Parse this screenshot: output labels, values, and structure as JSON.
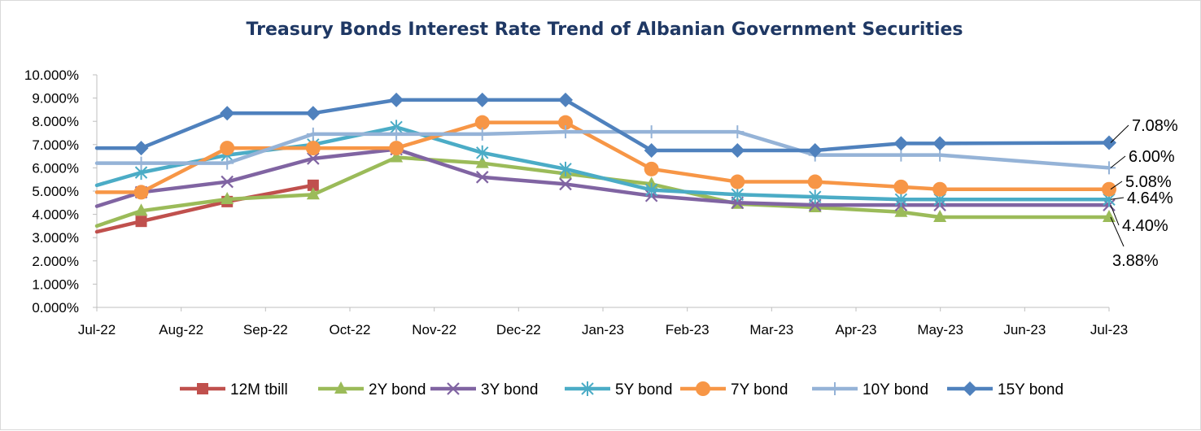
{
  "chart_data": {
    "type": "line",
    "title": "Treasury Bonds Interest Rate Trend of Albanian Government Securities",
    "xlabel": "",
    "ylabel": "",
    "ylim": [
      0,
      10
    ],
    "y_ticks": [
      "0.000%",
      "1.000%",
      "2.000%",
      "3.000%",
      "4.000%",
      "5.000%",
      "6.000%",
      "7.000%",
      "8.000%",
      "9.000%",
      "10.000%"
    ],
    "x_tick_labels": [
      "Jul-22",
      "Aug-22",
      "Sep-22",
      "Oct-22",
      "Nov-22",
      "Dec-22",
      "Jan-23",
      "Feb-23",
      "Mar-23",
      "Apr-23",
      "May-23",
      "Jun-23",
      "Jul-23"
    ],
    "grid": false,
    "legend_position": "bottom",
    "series": [
      {
        "name": "12M tbill",
        "color": "#c0504d",
        "marker": "square",
        "points": [
          [
            "2022-07-01",
            3.25
          ],
          [
            "2022-07-17",
            3.7
          ],
          [
            "2022-08-17",
            4.55
          ],
          [
            "2022-09-17",
            5.25
          ]
        ]
      },
      {
        "name": "2Y bond",
        "color": "#9bbb59",
        "marker": "triangle",
        "points": [
          [
            "2022-07-01",
            3.5
          ],
          [
            "2022-07-17",
            4.15
          ],
          [
            "2022-08-17",
            4.65
          ],
          [
            "2022-09-17",
            4.85
          ],
          [
            "2022-10-17",
            6.45
          ],
          [
            "2022-11-17",
            6.2
          ],
          [
            "2022-12-17",
            5.75
          ],
          [
            "2023-01-17",
            5.3
          ],
          [
            "2023-02-17",
            4.45
          ],
          [
            "2023-03-17",
            4.3
          ],
          [
            "2023-04-17",
            4.1
          ],
          [
            "2023-05-01",
            3.88
          ],
          [
            "2023-07-01",
            3.88
          ]
        ]
      },
      {
        "name": "3Y bond",
        "color": "#8064a2",
        "marker": "x",
        "points": [
          [
            "2022-07-01",
            4.35
          ],
          [
            "2022-07-17",
            4.95
          ],
          [
            "2022-08-17",
            5.4
          ],
          [
            "2022-09-17",
            6.4
          ],
          [
            "2022-10-17",
            6.8
          ],
          [
            "2022-11-17",
            5.6
          ],
          [
            "2022-12-17",
            5.3
          ],
          [
            "2023-01-17",
            4.8
          ],
          [
            "2023-02-17",
            4.5
          ],
          [
            "2023-03-17",
            4.4
          ],
          [
            "2023-04-17",
            4.4
          ],
          [
            "2023-05-01",
            4.4
          ],
          [
            "2023-07-01",
            4.4
          ]
        ]
      },
      {
        "name": "5Y bond",
        "color": "#4bacc6",
        "marker": "asterisk",
        "points": [
          [
            "2022-07-01",
            5.25
          ],
          [
            "2022-07-17",
            5.8
          ],
          [
            "2022-08-17",
            6.55
          ],
          [
            "2022-09-17",
            7.0
          ],
          [
            "2022-10-17",
            7.75
          ],
          [
            "2022-11-17",
            6.65
          ],
          [
            "2022-12-17",
            5.95
          ],
          [
            "2023-01-17",
            5.05
          ],
          [
            "2023-02-17",
            4.85
          ],
          [
            "2023-03-17",
            4.75
          ],
          [
            "2023-04-17",
            4.64
          ],
          [
            "2023-05-01",
            4.64
          ],
          [
            "2023-07-01",
            4.64
          ]
        ]
      },
      {
        "name": "7Y bond",
        "color": "#f79646",
        "marker": "circle",
        "points": [
          [
            "2022-07-01",
            4.95
          ],
          [
            "2022-07-17",
            4.95
          ],
          [
            "2022-08-17",
            6.85
          ],
          [
            "2022-09-17",
            6.85
          ],
          [
            "2022-10-17",
            6.85
          ],
          [
            "2022-11-17",
            7.95
          ],
          [
            "2022-12-17",
            7.95
          ],
          [
            "2023-01-17",
            5.95
          ],
          [
            "2023-02-17",
            5.4
          ],
          [
            "2023-03-17",
            5.4
          ],
          [
            "2023-04-17",
            5.18
          ],
          [
            "2023-05-01",
            5.08
          ],
          [
            "2023-07-01",
            5.08
          ]
        ]
      },
      {
        "name": "10Y bond",
        "color": "#95b3d7",
        "marker": "plus",
        "points": [
          [
            "2022-07-01",
            6.2
          ],
          [
            "2022-07-17",
            6.2
          ],
          [
            "2022-08-17",
            6.2
          ],
          [
            "2022-09-17",
            7.45
          ],
          [
            "2022-10-17",
            7.45
          ],
          [
            "2022-11-17",
            7.45
          ],
          [
            "2022-12-17",
            7.55
          ],
          [
            "2023-01-17",
            7.55
          ],
          [
            "2023-02-17",
            7.55
          ],
          [
            "2023-03-17",
            6.55
          ],
          [
            "2023-04-17",
            6.55
          ],
          [
            "2023-05-01",
            6.55
          ],
          [
            "2023-07-01",
            6.0
          ]
        ]
      },
      {
        "name": "15Y bond",
        "color": "#4f81bd",
        "marker": "diamond",
        "points": [
          [
            "2022-07-01",
            6.85
          ],
          [
            "2022-07-17",
            6.85
          ],
          [
            "2022-08-17",
            8.35
          ],
          [
            "2022-09-17",
            8.35
          ],
          [
            "2022-10-17",
            8.92
          ],
          [
            "2022-11-17",
            8.92
          ],
          [
            "2022-12-17",
            8.92
          ],
          [
            "2023-01-17",
            6.75
          ],
          [
            "2023-02-17",
            6.75
          ],
          [
            "2023-03-17",
            6.75
          ],
          [
            "2023-04-17",
            7.05
          ],
          [
            "2023-05-01",
            7.05
          ],
          [
            "2023-07-01",
            7.08
          ]
        ]
      }
    ],
    "data_labels": [
      {
        "text": "7.08%",
        "series": "15Y bond"
      },
      {
        "text": "6.00%",
        "series": "10Y bond"
      },
      {
        "text": "5.08%",
        "series": "7Y bond"
      },
      {
        "text": "4.64%",
        "series": "5Y bond"
      },
      {
        "text": "4.40%",
        "series": "3Y bond"
      },
      {
        "text": "3.88%",
        "series": "2Y bond"
      }
    ]
  }
}
